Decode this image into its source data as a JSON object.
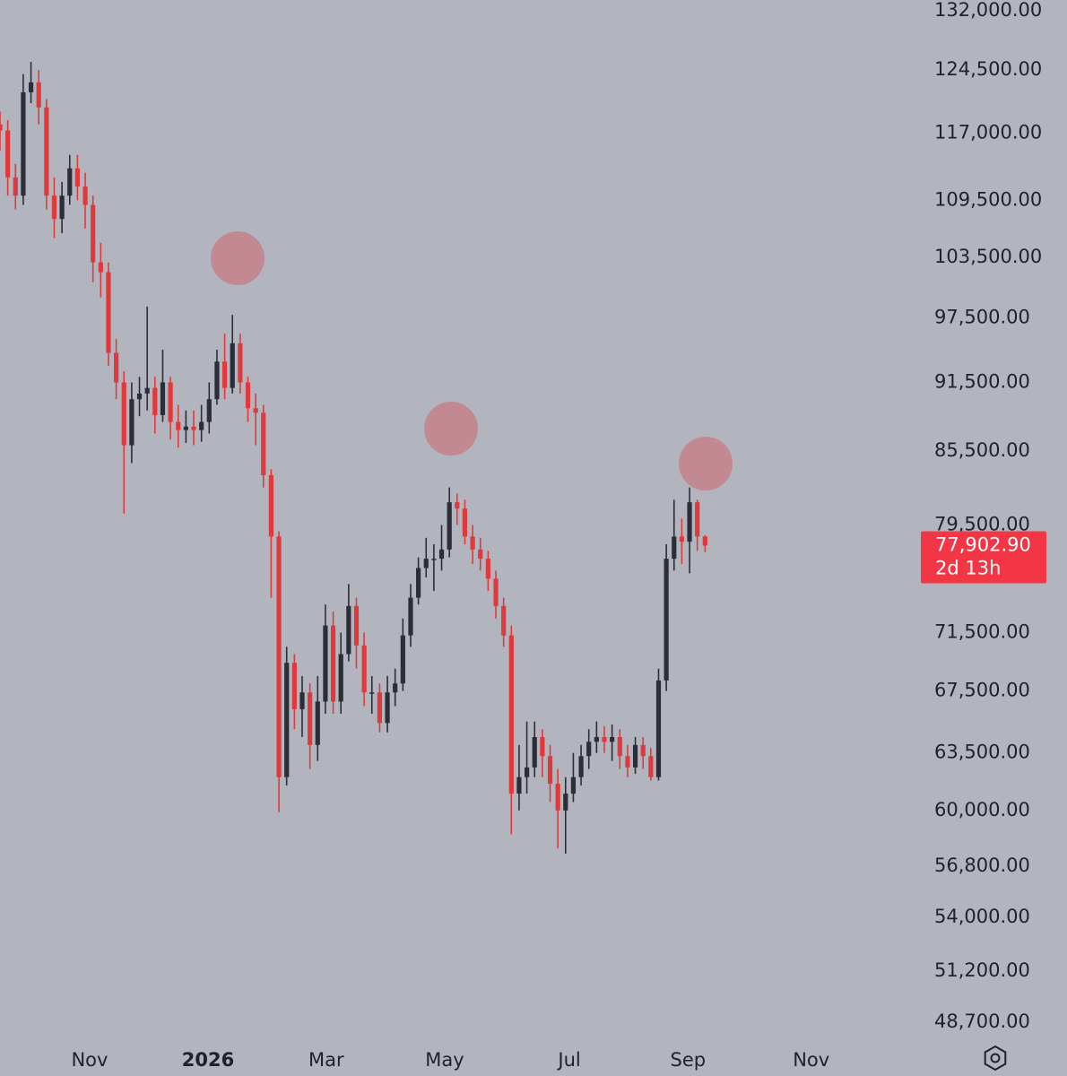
{
  "chart_data": {
    "type": "candlestick",
    "log_scale": true,
    "up_color": "#2a2e39",
    "down_color": "#e0393c",
    "background": "#b2b5be",
    "xlim": [
      0,
      119.2
    ],
    "xticks": [
      {
        "value": 11.57,
        "label": "Nov"
      },
      {
        "value": 26.85,
        "label": "2026"
      },
      {
        "value": 42.1,
        "label": "Mar"
      },
      {
        "value": 57.4,
        "label": "May"
      },
      {
        "value": 73.5,
        "label": "Jul"
      },
      {
        "value": 88.8,
        "label": "Sep"
      },
      {
        "value": 104.7,
        "label": "Nov"
      }
    ],
    "ylim": [
      47840,
      133400
    ],
    "yticks": [
      {
        "value": 132000,
        "label": "132,000.00"
      },
      {
        "value": 124500,
        "label": "124,500.00"
      },
      {
        "value": 117000,
        "label": "117,000.00"
      },
      {
        "value": 109500,
        "label": "109,500.00"
      },
      {
        "value": 103500,
        "label": "103,500.00"
      },
      {
        "value": 97500,
        "label": "97,500.00"
      },
      {
        "value": 91500,
        "label": "91,500.00"
      },
      {
        "value": 85500,
        "label": "85,500.00"
      },
      {
        "value": 79500,
        "label": "79,500.00"
      },
      {
        "value": 71500,
        "label": "71,500.00"
      },
      {
        "value": 67500,
        "label": "67,500.00"
      },
      {
        "value": 63500,
        "label": "63,500.00"
      },
      {
        "value": 60000,
        "label": "60,000.00"
      },
      {
        "value": 56800,
        "label": "56,800.00"
      },
      {
        "value": 54000,
        "label": "54,000.00"
      },
      {
        "value": 51200,
        "label": "51,200.00"
      },
      {
        "value": 48700,
        "label": "48,700.00"
      }
    ],
    "last_price": {
      "value": 77902.9,
      "label": "77,902.90",
      "color": "#f23645"
    },
    "countdown": "2d 13h",
    "open": [
      118000,
      117300,
      112000,
      110000,
      121800,
      123000,
      120000,
      110000,
      107500,
      110000,
      113000,
      111000,
      109000,
      103000,
      102000,
      94200,
      91500,
      86000,
      90000,
      90500,
      91000,
      88600,
      91500,
      88000,
      87300,
      87600,
      87300,
      88000,
      90000,
      93400,
      91000,
      95100,
      91500,
      89200,
      88800,
      83500,
      78600,
      62000,
      69400,
      66300,
      67400,
      64000,
      66800,
      72000,
      66800,
      70000,
      73400,
      70600,
      67400,
      67400,
      65400,
      67400,
      68000,
      71300,
      74000,
      76200,
      76900,
      76900,
      77600,
      81300,
      80800,
      78600,
      77600,
      76900,
      75400,
      73400,
      71300,
      61000,
      62000,
      62600,
      64500,
      63300,
      61600,
      60000,
      61000,
      62000,
      63300,
      64200,
      64500,
      64200,
      64500,
      63300,
      62600,
      64000,
      63300,
      62000,
      68200,
      76900,
      78600,
      78200,
      81300,
      78600
    ],
    "high": [
      119500,
      118500,
      113500,
      124000,
      125500,
      124500,
      121000,
      112000,
      111500,
      114500,
      114500,
      112500,
      110000,
      105000,
      103000,
      95500,
      92500,
      91500,
      92000,
      98600,
      92000,
      94500,
      92000,
      89500,
      89000,
      89000,
      89500,
      91500,
      94500,
      96000,
      97800,
      96000,
      92000,
      90500,
      89500,
      84000,
      79000,
      70500,
      70000,
      68500,
      68000,
      68500,
      73500,
      73000,
      71500,
      75000,
      74000,
      71500,
      68500,
      68000,
      68500,
      69000,
      72500,
      75000,
      77000,
      78500,
      78000,
      79500,
      82500,
      82000,
      81500,
      79500,
      78500,
      77500,
      76000,
      74000,
      72000,
      64000,
      65500,
      65500,
      65000,
      64000,
      62500,
      62000,
      63500,
      64000,
      65000,
      65500,
      65200,
      65300,
      65000,
      64000,
      64500,
      64500,
      63800,
      69000,
      78000,
      81500,
      80000,
      82500,
      81500,
      78700
    ],
    "low": [
      115000,
      110000,
      108500,
      109000,
      120500,
      118000,
      108500,
      105500,
      106000,
      109000,
      109500,
      106500,
      101000,
      99500,
      93000,
      90000,
      80400,
      84500,
      88500,
      89000,
      87000,
      88000,
      86500,
      85800,
      86200,
      86000,
      86300,
      87000,
      89500,
      90000,
      90500,
      90500,
      88000,
      86000,
      82500,
      74000,
      59900,
      61500,
      65000,
      64500,
      62500,
      63000,
      66000,
      66000,
      66000,
      69500,
      69000,
      66500,
      66000,
      64800,
      64800,
      66500,
      67500,
      70500,
      73500,
      75500,
      74500,
      76000,
      77000,
      79500,
      78000,
      76500,
      76000,
      74500,
      72500,
      70500,
      58600,
      60000,
      61000,
      62000,
      62000,
      60500,
      57800,
      57500,
      60500,
      61500,
      62500,
      63500,
      63500,
      63000,
      62500,
      62000,
      62200,
      62500,
      61800,
      61800,
      67500,
      76000,
      76500,
      75800,
      77500,
      77400
    ],
    "close": [
      117300,
      112000,
      110000,
      121800,
      123000,
      120000,
      110000,
      107500,
      110000,
      113000,
      111000,
      109000,
      103000,
      102000,
      94200,
      91500,
      86000,
      90000,
      90500,
      91000,
      88600,
      91500,
      88000,
      87300,
      87600,
      87300,
      88000,
      90000,
      93400,
      91000,
      95100,
      91500,
      89200,
      88800,
      83500,
      78600,
      62000,
      69400,
      66300,
      67400,
      64000,
      66800,
      72000,
      66800,
      70000,
      73400,
      70600,
      67400,
      67400,
      65400,
      67400,
      68000,
      71300,
      74000,
      76200,
      76900,
      76900,
      77600,
      81300,
      80800,
      78600,
      77600,
      76900,
      75400,
      73400,
      71300,
      61000,
      62000,
      62600,
      64500,
      63300,
      61600,
      60000,
      61000,
      62000,
      63300,
      64200,
      64500,
      64200,
      64500,
      63300,
      62600,
      64000,
      63300,
      62000,
      68200,
      76900,
      78600,
      78200,
      81300,
      78600,
      77902.9
    ]
  }
}
